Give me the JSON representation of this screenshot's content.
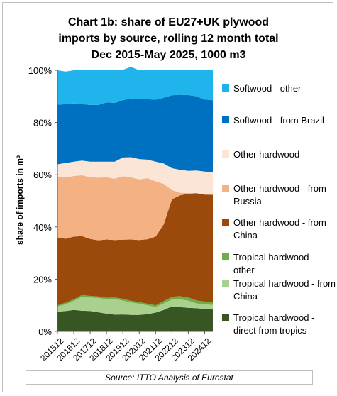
{
  "title_lines": [
    "Chart 1b: share of EU27+UK plywood",
    "imports by source, rolling 12 month total",
    "Dec 2015-May 2025, 1000 m3"
  ],
  "source": "Source: ITTO Analysis of Eurostat",
  "chart_data": {
    "type": "area",
    "stacked": true,
    "percent_stacked": true,
    "title": "Chart 1b: share of EU27+UK plywood imports by source, rolling 12 month total Dec 2015-May 2025, 1000 m3",
    "ylabel": "share of imports in m³",
    "xlabel": "",
    "ylim": [
      0,
      100
    ],
    "y_ticks": [
      "0%",
      "20%",
      "40%",
      "60%",
      "80%",
      "100%"
    ],
    "x_tick_labels": [
      "201512",
      "201612",
      "201712",
      "201812",
      "201912",
      "202012",
      "202112",
      "202212",
      "202312",
      "202412"
    ],
    "legend_position": "right",
    "x": [
      "201512",
      "201606",
      "201612",
      "201706",
      "201712",
      "201806",
      "201812",
      "201906",
      "201912",
      "202006",
      "202012",
      "202106",
      "202112",
      "202206",
      "202212",
      "202306",
      "202312",
      "202406",
      "202412",
      "202505"
    ],
    "series": [
      {
        "name": "Tropical hardwood - direct from tropics",
        "color": "#375623",
        "values": [
          7.5,
          7.8,
          8.2,
          7.9,
          7.8,
          7.3,
          6.8,
          6.4,
          6.5,
          6.3,
          6.3,
          6.6,
          7.2,
          8.2,
          9.6,
          9.3,
          9.0,
          8.9,
          8.6,
          8.4
        ]
      },
      {
        "name": "Tropical hardwood - from China",
        "color": "#a9d08e",
        "values": [
          2.0,
          2.6,
          3.5,
          5.3,
          5.2,
          5.5,
          5.5,
          6.0,
          5.3,
          4.8,
          4.3,
          3.4,
          2.2,
          2.5,
          2.6,
          3.0,
          2.8,
          1.8,
          1.7,
          1.8
        ]
      },
      {
        "name": "Tropical hardwood - other",
        "color": "#70ad47",
        "values": [
          0.5,
          0.6,
          0.6,
          0.7,
          0.6,
          0.6,
          0.6,
          0.6,
          0.7,
          0.6,
          0.6,
          0.6,
          0.6,
          0.9,
          1.0,
          1.2,
          1.2,
          1.2,
          1.1,
          1.2
        ]
      },
      {
        "name": "Other hardwood - from China",
        "color": "#9c4a0b",
        "values": [
          26.0,
          24.5,
          24.0,
          22.6,
          21.8,
          21.5,
          22.3,
          22.0,
          22.6,
          23.5,
          23.8,
          24.7,
          26.3,
          29.4,
          37.4,
          38.6,
          39.7,
          41.0,
          41.0,
          40.9
        ]
      },
      {
        "name": "Other hardwood - from Russia",
        "color": "#f4b183",
        "values": [
          23.0,
          23.5,
          23.2,
          23.3,
          23.6,
          24.0,
          23.8,
          23.5,
          24.3,
          23.8,
          23.2,
          23.4,
          21.2,
          15.5,
          3.5,
          1.0,
          0.3,
          0.1,
          0.1,
          0.1
        ]
      },
      {
        "name": "Other hardwood",
        "color": "#fbe5d6",
        "values": [
          5.0,
          5.5,
          5.5,
          5.6,
          6.0,
          6.1,
          6.0,
          6.5,
          7.2,
          7.7,
          7.8,
          7.1,
          7.5,
          7.8,
          8.4,
          8.8,
          8.5,
          8.6,
          8.7,
          8.5
        ]
      },
      {
        "name": "Softwood - from Brazil",
        "color": "#0070c0",
        "values": [
          22.8,
          22.5,
          22.3,
          21.6,
          21.7,
          21.7,
          22.7,
          22.5,
          21.9,
          22.5,
          23.0,
          23.1,
          23.7,
          25.2,
          27.9,
          28.7,
          29.0,
          28.4,
          27.6,
          27.6
        ]
      },
      {
        "name": "Softwood - other",
        "color": "#1fb5ec",
        "values": [
          13.2,
          12.5,
          12.7,
          13.0,
          13.3,
          13.3,
          12.3,
          12.5,
          11.7,
          12.1,
          11.0,
          11.1,
          11.3,
          10.5,
          9.6,
          9.4,
          9.5,
          10.0,
          11.2,
          11.5
        ]
      }
    ]
  }
}
